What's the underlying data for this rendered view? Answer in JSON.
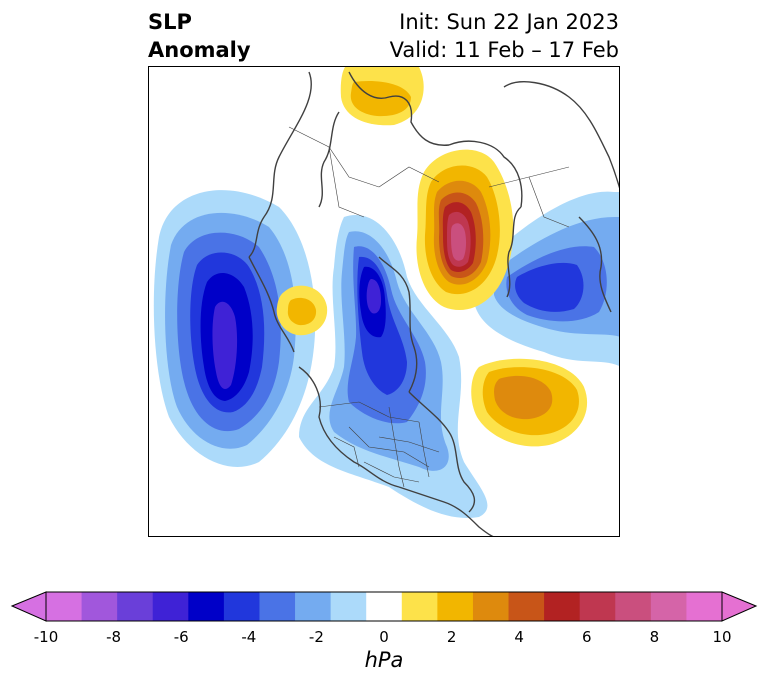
{
  "title": {
    "left_line1": "SLP",
    "left_line2": "Anomaly",
    "init": "Init: Sun 22 Jan 2023",
    "valid": "Valid: 11 Feb – 17 Feb"
  },
  "colorbar": {
    "unit_label": "hPa",
    "ticks": [
      "-10",
      "-8",
      "-6",
      "-4",
      "-2",
      "0",
      "2",
      "4",
      "6",
      "8",
      "10"
    ],
    "tick_values": [
      -10,
      -8,
      -6,
      -4,
      -2,
      0,
      2,
      4,
      6,
      8,
      10
    ],
    "levels": [
      -10,
      -9,
      -8,
      -7,
      -6,
      -5,
      -4,
      -3,
      -2,
      -1,
      1,
      2,
      3,
      4,
      5,
      6,
      7,
      8,
      9,
      10
    ],
    "colors": [
      "#d670e2",
      "#a157dc",
      "#6a3fd9",
      "#3f22d6",
      "#0000c8",
      "#2137dc",
      "#4a73e6",
      "#74abf0",
      "#acdafa",
      "#ffffff",
      "#fde24a",
      "#f2b600",
      "#de8a0d",
      "#c85518",
      "#b22222",
      "#bf3750",
      "#ca4f7e",
      "#d564a8",
      "#e570d2"
    ],
    "extend_low_color": "#d670e2",
    "extend_high_color": "#e570d2"
  },
  "map": {
    "projection": "north-polar-stereographic",
    "coastline_color": "#404040"
  }
}
